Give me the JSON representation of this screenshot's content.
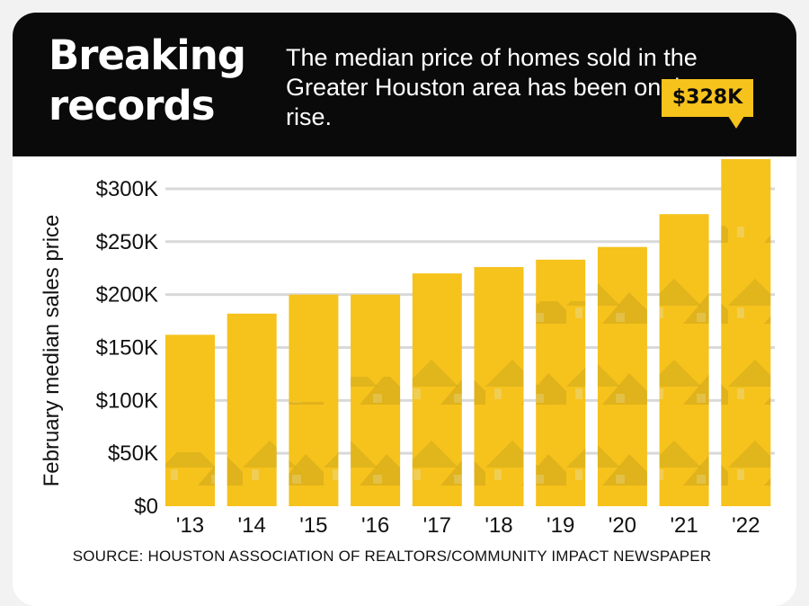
{
  "header": {
    "title_line1": "Breaking",
    "title_line2": "records",
    "subtitle": "The median price of homes sold in the Greater Houston area has been on the rise."
  },
  "callout": {
    "label": "$328K",
    "year": "'22"
  },
  "footer": {
    "source": "SOURCE: HOUSTON ASSOCIATION OF REALTORS/COMMUNITY IMPACT NEWSPAPER"
  },
  "colors": {
    "bar": "#f6c21c",
    "bar_texture": "#c9a41d",
    "header_bg": "#0a0a0a",
    "grid": "#d9d9d9"
  },
  "chart_data": {
    "type": "bar",
    "title": "",
    "xlabel": "",
    "ylabel": "February median sales price",
    "categories": [
      "'13",
      "'14",
      "'15",
      "'16",
      "'17",
      "'18",
      "'19",
      "'20",
      "'21",
      "'22"
    ],
    "values": [
      162000,
      182000,
      200000,
      200000,
      220000,
      226000,
      233000,
      245000,
      276000,
      328000
    ],
    "ylim": [
      0,
      328000
    ],
    "yticks": [
      0,
      50000,
      100000,
      150000,
      200000,
      250000,
      300000
    ],
    "ytick_labels": [
      "$0",
      "$50K",
      "$100K",
      "$150K",
      "$200K",
      "$250K",
      "$300K"
    ],
    "grid": true,
    "legend": "none"
  }
}
